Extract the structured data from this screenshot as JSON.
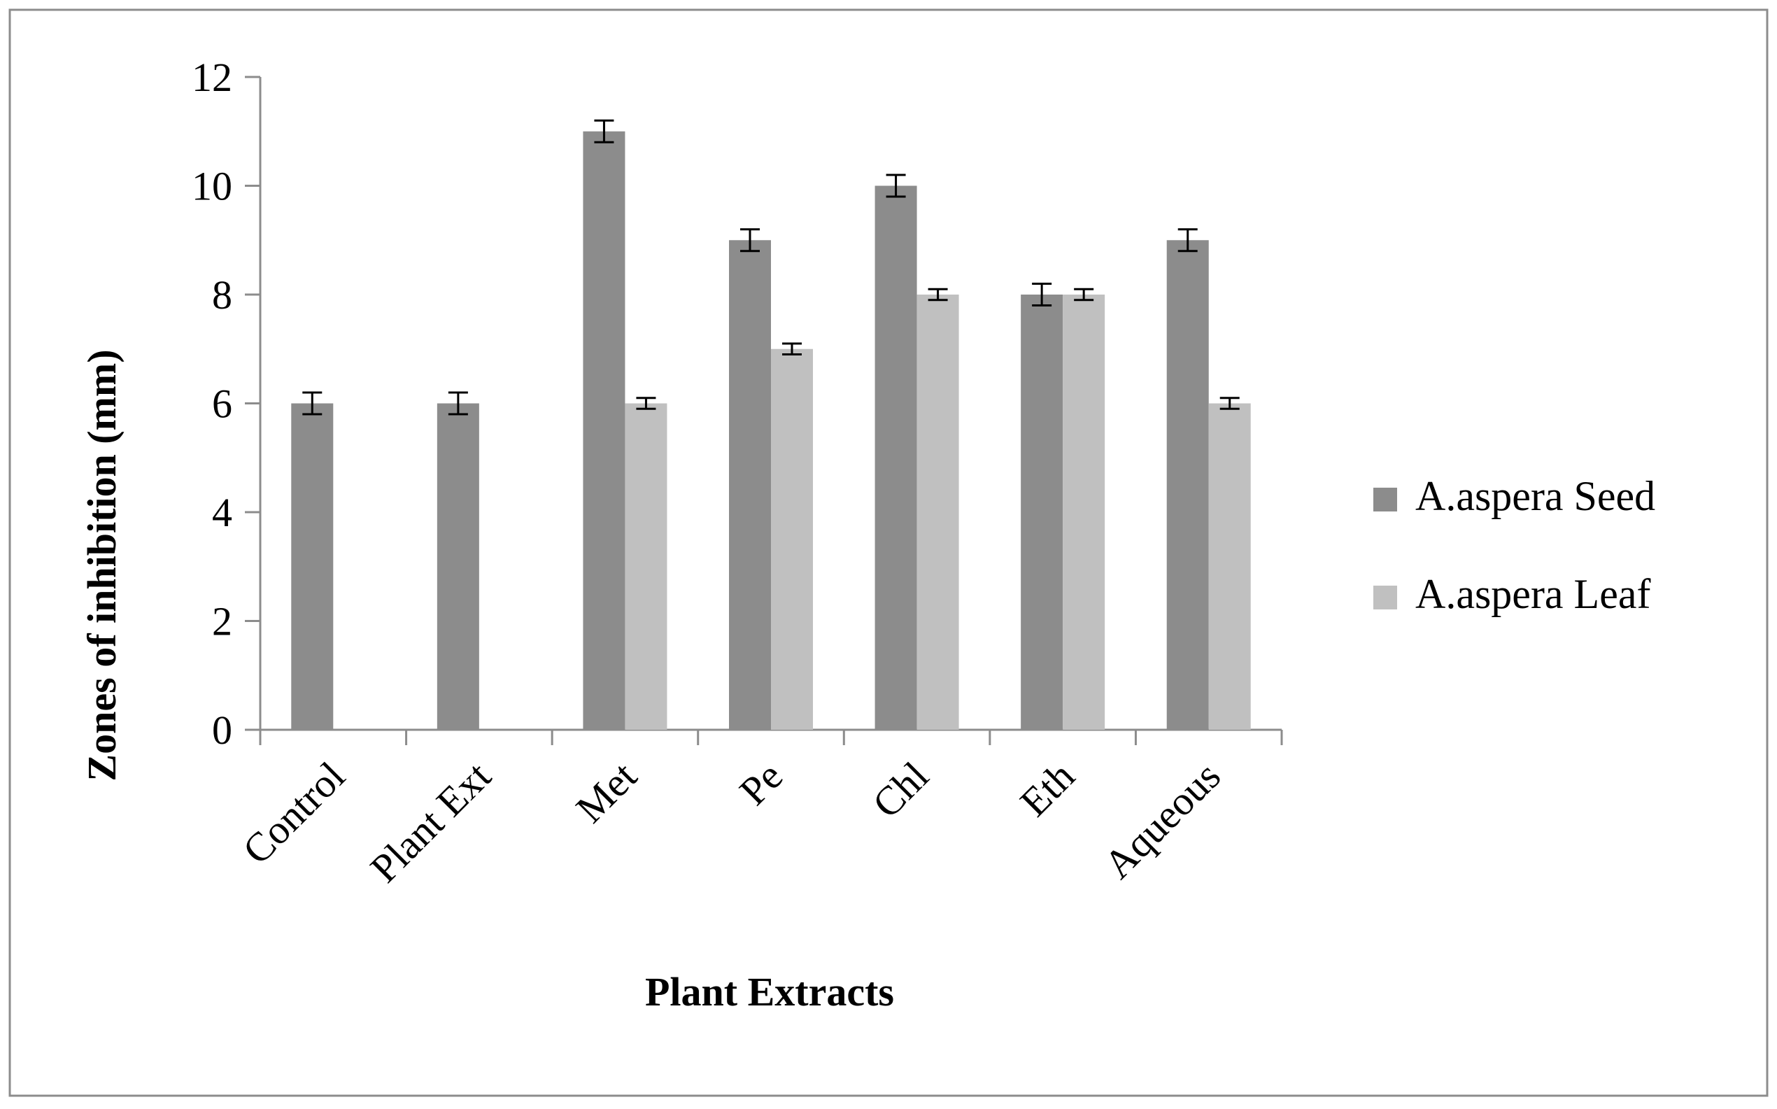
{
  "chart_data": {
    "type": "bar",
    "title": "",
    "xlabel": "Plant Extracts",
    "ylabel": "Zones of inhibition (mm)",
    "categories": [
      "Control",
      "Plant Ext",
      "Met",
      "Pe",
      "Chl",
      "Eth",
      "Aqueous"
    ],
    "ylim": [
      0,
      12
    ],
    "yticks": [
      0,
      2,
      4,
      6,
      8,
      10,
      12
    ],
    "grid": false,
    "legend_position": "right",
    "series": [
      {
        "name": "A.aspera Seed",
        "color": "#8c8c8c",
        "values": [
          6,
          6,
          11,
          9,
          10,
          8,
          9
        ],
        "errors": [
          0.2,
          0.2,
          0.2,
          0.2,
          0.2,
          0.2,
          0.2
        ]
      },
      {
        "name": "A.aspera Leaf",
        "color": "#c0c0c0",
        "values": [
          0,
          0,
          6,
          7,
          8,
          8,
          6
        ],
        "errors": [
          0,
          0,
          0.1,
          0.1,
          0.1,
          0.1,
          0.1
        ]
      }
    ]
  }
}
